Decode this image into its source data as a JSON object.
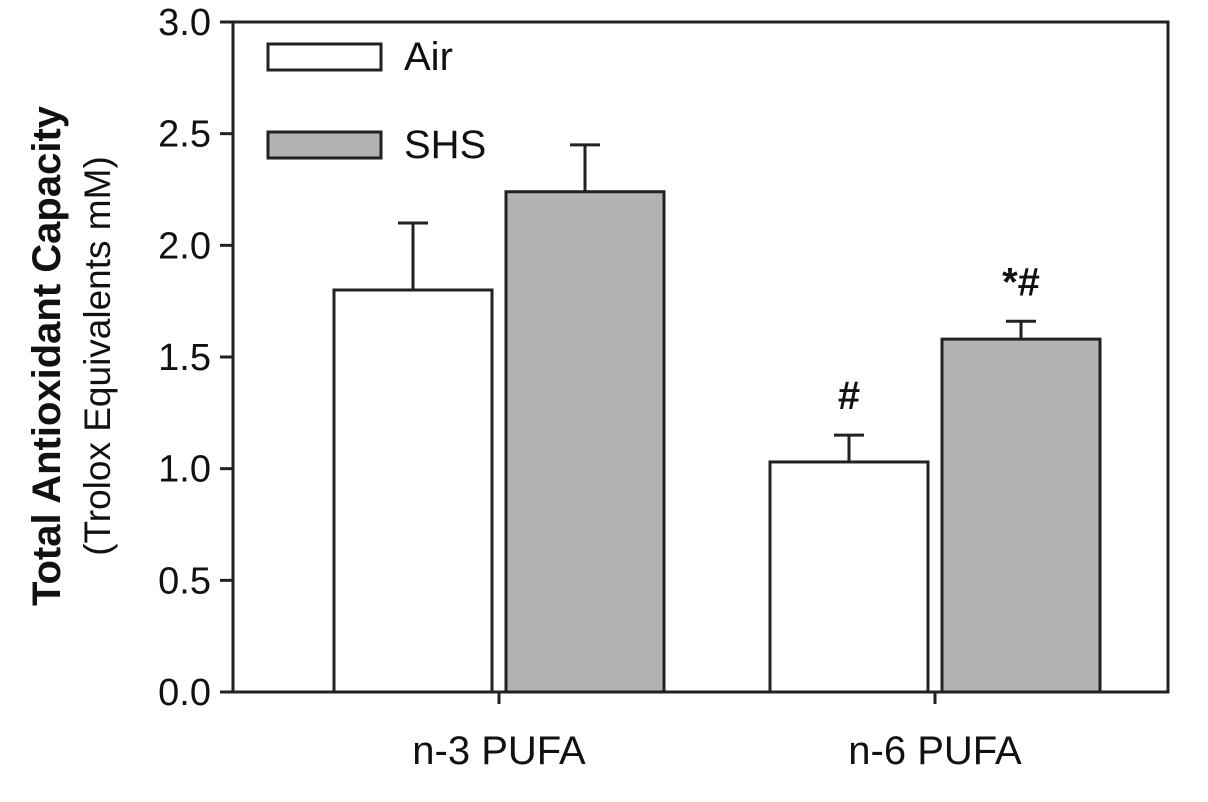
{
  "colors": {
    "axis": "#222222",
    "bar_stroke": "#222222"
  },
  "chart_data": {
    "type": "bar",
    "categories": [
      "n-3 PUFA",
      "n-6 PUFA"
    ],
    "ylabel": "Total Antioxidant Capacity",
    "ylabel_sub": "(Trolox Equivalents mM)",
    "ylim": [
      0,
      3.0
    ],
    "yticks": [
      "0.0",
      "0.5",
      "1.0",
      "1.5",
      "2.0",
      "2.5",
      "3.0"
    ],
    "grid": false,
    "legend_position": "top-left",
    "series": [
      {
        "name": "Air",
        "color": "#ffffff",
        "values": [
          1.8,
          1.03
        ],
        "errors": [
          0.3,
          0.12
        ],
        "annotations": [
          "",
          "#"
        ]
      },
      {
        "name": "SHS",
        "color": "#b3b3b3",
        "values": [
          2.24,
          1.58
        ],
        "errors": [
          0.21,
          0.08
        ],
        "annotations": [
          "",
          "*#"
        ]
      }
    ]
  }
}
